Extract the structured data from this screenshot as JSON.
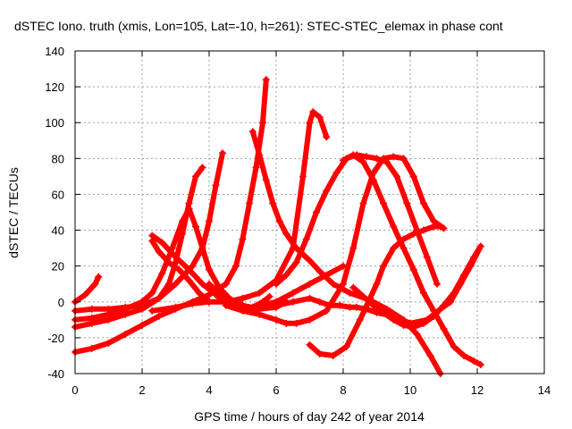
{
  "chart_data": {
    "type": "scatter",
    "title": "dSTEC Iono. truth (xmis, Lon=105, Lat=-10, h=261): STEC-STEC_elemax in phase cont",
    "xlabel": "GPS time / hours of day 242 of year 2014",
    "ylabel": "dSTEC  / TECUs",
    "xlim": [
      0,
      14
    ],
    "ylim": [
      -40,
      140
    ],
    "xticks": [
      "0",
      "2",
      "4",
      "6",
      "8",
      "10",
      "12",
      "14"
    ],
    "yticks": [
      "-40",
      "-20",
      "0",
      "20",
      "40",
      "60",
      "80",
      "100",
      "120",
      "140"
    ],
    "grid": true,
    "legend": "none",
    "marker": "plus",
    "color": "#ff0000",
    "series": [
      {
        "x": [
          0,
          0.3,
          0.6,
          0.7
        ],
        "y": [
          0,
          4,
          10,
          14
        ]
      },
      {
        "x": [
          0,
          0.5,
          1.0,
          1.5,
          2.0,
          2.3,
          2.6,
          2.9,
          3.2,
          3.4
        ],
        "y": [
          -10,
          -9,
          -7,
          -4,
          0,
          5,
          16,
          30,
          45,
          52
        ]
      },
      {
        "x": [
          3.4,
          3.6,
          3.8,
          4.0,
          4.3,
          4.6,
          5.0,
          5.5,
          6.0,
          6.3
        ],
        "y": [
          52,
          42,
          30,
          18,
          8,
          2,
          -2,
          -4,
          -3,
          0
        ]
      },
      {
        "x": [
          0,
          0.5,
          1.0,
          1.5,
          2.0,
          2.5,
          2.8,
          3.0,
          3.2,
          3.4,
          3.6,
          3.8
        ],
        "y": [
          -5,
          -4,
          -4,
          -3,
          -2,
          2,
          10,
          22,
          38,
          55,
          70,
          75
        ]
      },
      {
        "x": [
          0,
          0.5,
          1.0,
          1.5,
          2.0,
          2.5,
          3.0,
          3.5,
          3.8,
          4.0,
          4.2,
          4.4
        ],
        "y": [
          -14,
          -12,
          -10,
          -7,
          -4,
          2,
          10,
          20,
          30,
          45,
          65,
          83
        ]
      },
      {
        "x": [
          0,
          0.5,
          1.0,
          1.5,
          2.0,
          2.5,
          3.0,
          3.5,
          4.0,
          4.5,
          4.8,
          5.0,
          5.2,
          5.4,
          5.6,
          5.7
        ],
        "y": [
          -28,
          -26,
          -23,
          -18,
          -13,
          -8,
          -4,
          0,
          4,
          10,
          20,
          35,
          55,
          75,
          100,
          124
        ]
      },
      {
        "x": [
          2.3,
          2.6,
          3.0,
          3.4,
          3.8,
          4.2,
          4.6,
          5.0,
          5.3,
          5.6,
          5.8
        ],
        "y": [
          37,
          33,
          25,
          18,
          10,
          4,
          -2,
          -4,
          -3,
          0,
          3
        ]
      },
      {
        "x": [
          2.3,
          2.5,
          2.8,
          3.1,
          3.4,
          3.7,
          4.0
        ],
        "y": [
          34,
          28,
          22,
          18,
          12,
          5,
          0
        ]
      },
      {
        "x": [
          2.3,
          3.0,
          3.5,
          4.0,
          4.5,
          5.0,
          5.5,
          6.0,
          6.5,
          6.8,
          7.0,
          7.1,
          7.3,
          7.5
        ],
        "y": [
          -5,
          -3,
          -1,
          0,
          0,
          2,
          5,
          12,
          30,
          70,
          100,
          106,
          103,
          92
        ]
      },
      {
        "x": [
          5.3,
          5.5,
          5.7,
          5.9,
          6.1,
          6.3,
          6.6,
          7.0,
          7.3,
          7.7,
          8.2,
          8.8,
          9.3,
          9.8,
          10.2,
          10.6,
          10.9
        ],
        "y": [
          95,
          82,
          68,
          55,
          45,
          38,
          30,
          23,
          17,
          10,
          5,
          1,
          -4,
          -10,
          -18,
          -30,
          -40
        ]
      },
      {
        "x": [
          4.0,
          4.3,
          4.6,
          5.0,
          5.5,
          6.0,
          6.5,
          7.0,
          7.3,
          7.6,
          7.9,
          8.2,
          8.4,
          8.7,
          9.0,
          9.5,
          10.0,
          10.5,
          10.9,
          11.2,
          11.5,
          11.8,
          12.1
        ],
        "y": [
          10,
          5,
          0,
          -2,
          -4,
          -2,
          0,
          2,
          0,
          -2,
          -2,
          -3,
          -3,
          -4,
          -6,
          -8,
          -12,
          -10,
          -4,
          0,
          10,
          20,
          31
        ]
      },
      {
        "x": [
          4.5,
          5.0,
          5.5,
          6.0,
          6.3,
          6.6,
          7.0,
          7.5,
          8.0,
          8.3,
          8.6,
          8.9,
          9.2,
          9.5,
          9.8,
          10.1,
          10.4,
          10.7,
          11.0
        ],
        "y": [
          -2,
          -5,
          -7,
          -10,
          -12,
          -12,
          -10,
          -5,
          10,
          30,
          55,
          72,
          80,
          81,
          80,
          70,
          55,
          45,
          41
        ]
      },
      {
        "x": [
          5.5,
          6.0,
          6.5,
          7.0,
          7.5,
          8.0
        ],
        "y": [
          -2,
          0,
          5,
          10,
          15,
          20
        ]
      },
      {
        "x": [
          7.0,
          7.3,
          7.7,
          8.1,
          8.5,
          8.8,
          9.0,
          9.2,
          9.5,
          9.8,
          10.1,
          10.4,
          10.7,
          10.9
        ],
        "y": [
          -24,
          -29,
          -30,
          -25,
          -10,
          2,
          10,
          20,
          30,
          35,
          38,
          40,
          42,
          42
        ]
      },
      {
        "x": [
          8.0,
          8.3,
          8.6,
          8.9,
          9.2,
          9.5,
          9.8,
          10.1,
          10.4,
          10.7,
          11.0,
          11.3,
          11.6,
          11.9,
          12.1
        ],
        "y": [
          79,
          82,
          78,
          68,
          55,
          42,
          30,
          18,
          5,
          -5,
          -15,
          -25,
          -30,
          -33,
          -35
        ]
      },
      {
        "x": [
          8.3,
          8.6,
          8.9,
          9.2,
          9.5,
          9.8,
          10.1,
          10.4,
          10.7,
          11.0,
          11.3,
          11.6,
          11.9,
          12.1
        ],
        "y": [
          8,
          3,
          -2,
          -6,
          -10,
          -13,
          -14,
          -12,
          -8,
          -2,
          5,
          15,
          25,
          31
        ]
      },
      {
        "x": [
          6.0,
          6.3,
          6.6,
          6.9,
          7.2,
          7.5,
          7.8,
          8.1,
          8.4,
          8.7,
          9.0,
          9.3,
          9.6,
          9.9,
          10.2,
          10.5,
          10.8
        ],
        "y": [
          10,
          15,
          22,
          35,
          50,
          62,
          72,
          80,
          82,
          81,
          80,
          78,
          70,
          55,
          40,
          25,
          10
        ]
      }
    ]
  }
}
